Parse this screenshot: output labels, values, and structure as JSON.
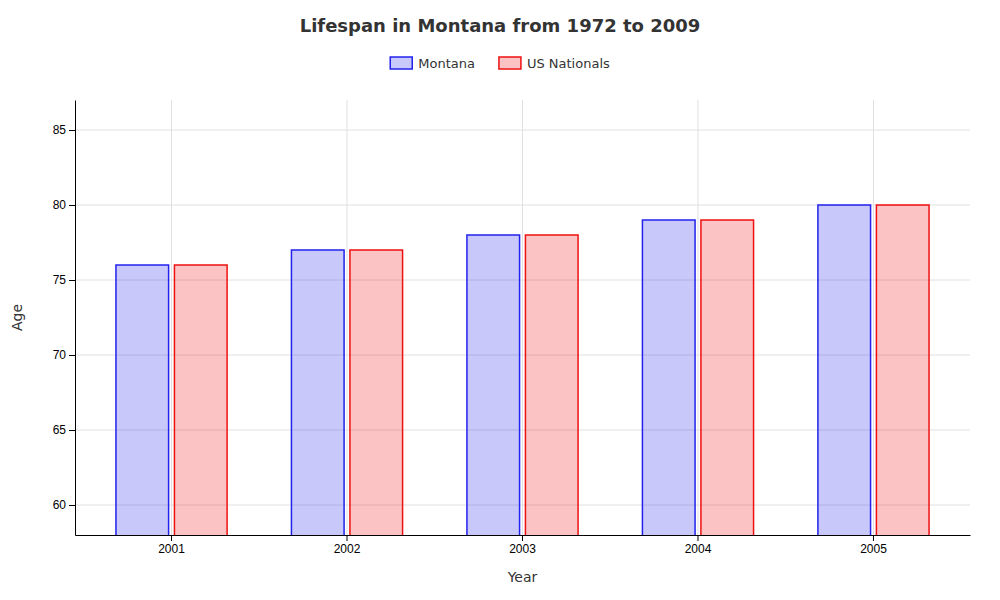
{
  "chart_data": {
    "type": "bar",
    "title": "Lifespan in Montana from 1972 to 2009",
    "x_label": "Year",
    "y_label": "Age",
    "categories": [
      "2001",
      "2002",
      "2003",
      "2004",
      "2005"
    ],
    "series": [
      {
        "name": "Montana",
        "color": "#2222ee",
        "values": [
          76,
          77,
          78,
          79,
          80
        ]
      },
      {
        "name": "US Nationals",
        "color": "#ee1111",
        "values": [
          76,
          77,
          78,
          79,
          80
        ]
      }
    ],
    "ylim": [
      58,
      87
    ],
    "yticks": [
      60,
      65,
      70,
      75,
      80,
      85
    ],
    "grid": true,
    "legend": "top"
  }
}
